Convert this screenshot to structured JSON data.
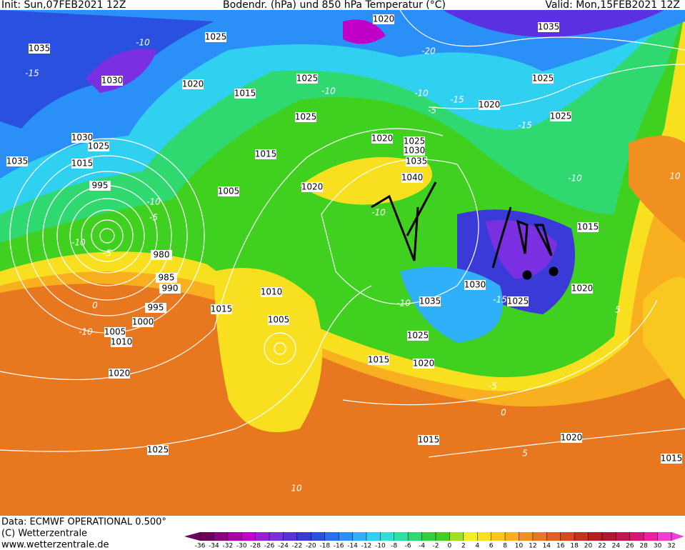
{
  "header": {
    "init": "Init: Sun,07FEB2021 12Z",
    "title": "Bodendr. (hPa) und 850 hPa Temperatur (°C)",
    "valid": "Valid: Mon,15FEB2021 12Z"
  },
  "footer": {
    "data": "Data: ECMWF OPERATIONAL 0.500°",
    "copyright": "(C) Wetterzentrale",
    "url": "www.wetterzentrale.de"
  },
  "isobar_labels": [
    "1020",
    "1035",
    "1025",
    "1035",
    "1030",
    "1020",
    "1025",
    "1015",
    "1025",
    "1020",
    "1025",
    "1025",
    "1020",
    "1025",
    "1030",
    "1035",
    "1040",
    "1015",
    "1030",
    "1025",
    "1035",
    "1015",
    "1005",
    "1020",
    "995",
    "1015",
    "980",
    "985",
    "990",
    "995",
    "1000",
    "1005",
    "1010",
    "1030",
    "1020",
    "1035",
    "1025",
    "1010",
    "1015",
    "1005",
    "1025",
    "1015",
    "1020",
    "1020",
    "1025",
    "1015",
    "1020",
    "1015"
  ],
  "temperature_labels": [
    "-15",
    "-10",
    "-20",
    "-10",
    "-5",
    "-15",
    "-10",
    "-10",
    "-5",
    "-10",
    "-5",
    "0",
    "-15",
    "-10",
    "-5",
    "0",
    "5",
    "10",
    "-10",
    "10",
    "-10",
    "-15",
    "-10",
    "5"
  ],
  "colorbar": {
    "ticks": [
      -36,
      -34,
      -32,
      -30,
      -28,
      -26,
      -24,
      -22,
      -20,
      -18,
      -16,
      -14,
      -12,
      -10,
      -8,
      -6,
      -4,
      -2,
      0,
      2,
      4,
      6,
      8,
      10,
      12,
      14,
      16,
      18,
      20,
      22,
      24,
      26,
      28,
      30,
      32
    ],
    "colors": [
      "#6a005a",
      "#8a0080",
      "#a800a8",
      "#c000c8",
      "#9a20d8",
      "#7a30e0",
      "#5a30e0",
      "#3a3ad8",
      "#2a50e0",
      "#2a70f0",
      "#2a90f8",
      "#30b0f8",
      "#30d0f0",
      "#30e0d0",
      "#30e0a0",
      "#30d870",
      "#30d040",
      "#40d020",
      "#a0e020",
      "#f0f020",
      "#f8e020",
      "#f8c820",
      "#f8b020",
      "#f09020",
      "#e87820",
      "#e06020",
      "#d84820",
      "#c83020",
      "#b82020",
      "#b01830",
      "#c01850",
      "#d81870",
      "#f020a0",
      "#f040d0"
    ]
  }
}
